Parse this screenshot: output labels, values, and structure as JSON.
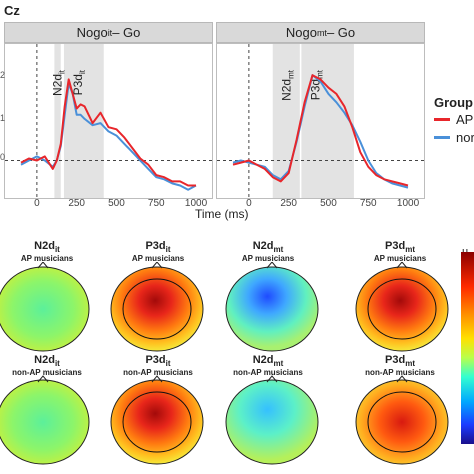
{
  "section_label": "Cz",
  "panels": [
    {
      "strip": "Nogo_it − Go",
      "strip_main": "Nogo",
      "strip_sub": "it",
      "strip_tail": " – Go",
      "comp1": {
        "main": "N2d",
        "sub": "it"
      },
      "comp2": {
        "main": "P3d",
        "sub": "it"
      }
    },
    {
      "strip": "Nogo_mt − Go",
      "strip_main": "Nogo",
      "strip_sub": "mt",
      "strip_tail": " – Go",
      "comp1": {
        "main": "N2d",
        "sub": "mt"
      },
      "comp2": {
        "main": "P3d",
        "sub": "mt"
      }
    }
  ],
  "x_axis": {
    "label": "Time (ms)",
    "ticks": [
      "0",
      "250",
      "500",
      "750",
      "1000"
    ]
  },
  "y_axis": {
    "ticks": [
      "2",
      "1",
      "0"
    ]
  },
  "legend": {
    "title": "Group",
    "items": [
      {
        "label": "AP",
        "color": "#e8262b"
      },
      {
        "label": "nor",
        "color": "#4a90d9"
      }
    ]
  },
  "topomaps": {
    "row1_sub": "AP musicians",
    "row2_sub": "non-AP musicians",
    "titles": [
      {
        "main": "N2d",
        "sub": "it"
      },
      {
        "main": "P3d",
        "sub": "it"
      },
      {
        "main": "N2d",
        "sub": "mt"
      },
      {
        "main": "P3d",
        "sub": "mt"
      }
    ]
  },
  "colorbar": {
    "unit": "µ"
  },
  "chart_data": [
    {
      "type": "line",
      "title": "Nogo_it − Go",
      "xlabel": "Time (ms)",
      "xlim": [
        -150,
        1050
      ],
      "ylim": [
        -0.9,
        2.8
      ],
      "shaded_windows": [
        [
          110,
          150
        ],
        [
          170,
          420
        ]
      ],
      "x": [
        -100,
        -50,
        0,
        50,
        100,
        125,
        150,
        175,
        200,
        225,
        250,
        275,
        300,
        350,
        400,
        450,
        500,
        550,
        600,
        650,
        700,
        750,
        800,
        850,
        900,
        950,
        1000
      ],
      "series": [
        {
          "name": "AP",
          "values": [
            -0.05,
            0.05,
            0.0,
            0.1,
            -0.2,
            0.0,
            0.4,
            1.3,
            1.95,
            1.6,
            1.25,
            1.35,
            1.3,
            0.9,
            1.15,
            0.8,
            0.75,
            0.55,
            0.3,
            0.05,
            -0.1,
            -0.35,
            -0.4,
            -0.5,
            -0.5,
            -0.6,
            -0.6
          ]
        },
        {
          "name": "nor",
          "values": [
            -0.1,
            0.0,
            0.1,
            0.0,
            -0.15,
            0.0,
            0.35,
            1.1,
            1.85,
            1.6,
            1.1,
            1.1,
            1.0,
            0.85,
            0.9,
            0.7,
            0.6,
            0.4,
            0.2,
            0.0,
            -0.2,
            -0.4,
            -0.45,
            -0.55,
            -0.6,
            -0.7,
            -0.6
          ]
        }
      ]
    },
    {
      "type": "line",
      "title": "Nogo_mt − Go",
      "xlabel": "Time (ms)",
      "xlim": [
        -150,
        1050
      ],
      "ylim": [
        -0.9,
        2.8
      ],
      "shaded_windows": [
        [
          150,
          320
        ],
        [
          330,
          660
        ]
      ],
      "x": [
        -100,
        -50,
        0,
        50,
        100,
        150,
        200,
        250,
        300,
        350,
        400,
        450,
        500,
        550,
        600,
        650,
        700,
        750,
        800,
        850,
        900,
        950,
        1000
      ],
      "series": [
        {
          "name": "AP",
          "values": [
            -0.1,
            -0.05,
            0.0,
            -0.1,
            -0.2,
            -0.4,
            -0.5,
            -0.3,
            0.5,
            1.4,
            2.05,
            1.95,
            1.75,
            1.6,
            1.3,
            0.8,
            0.2,
            -0.15,
            -0.35,
            -0.45,
            -0.5,
            -0.55,
            -0.6
          ]
        },
        {
          "name": "nor",
          "values": [
            -0.05,
            0.0,
            -0.05,
            -0.1,
            -0.15,
            -0.35,
            -0.45,
            -0.25,
            0.45,
            1.3,
            2.05,
            1.9,
            1.6,
            1.4,
            1.15,
            0.85,
            0.45,
            0.0,
            -0.3,
            -0.45,
            -0.55,
            -0.6,
            -0.65
          ]
        }
      ]
    }
  ]
}
